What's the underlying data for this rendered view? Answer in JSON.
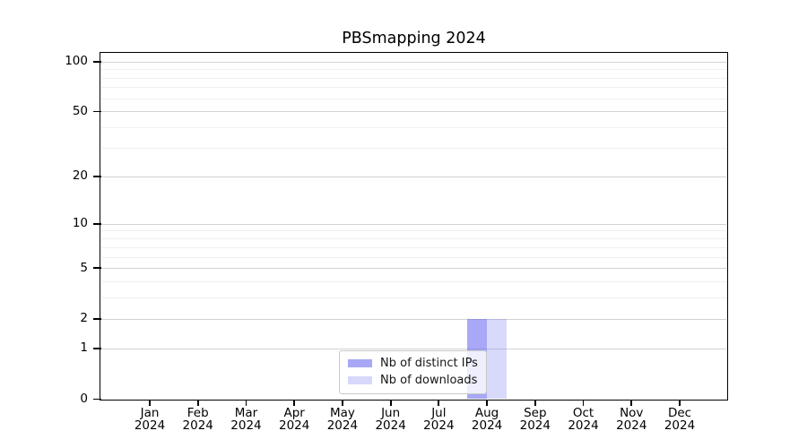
{
  "chart_data": {
    "type": "bar",
    "title": "PBSmapping 2024",
    "categories": [
      "Jan",
      "Feb",
      "Mar",
      "Apr",
      "May",
      "Jun",
      "Jul",
      "Aug",
      "Sep",
      "Oct",
      "Nov",
      "Dec"
    ],
    "year": "2024",
    "series": [
      {
        "name": "Nb of distinct IPs",
        "color": "rgba(102,102,240,0.57)",
        "legend_swatch_hex": "#a8a8f6",
        "values": [
          0,
          0,
          0,
          0,
          0,
          0,
          0,
          2,
          0,
          0,
          0,
          0
        ]
      },
      {
        "name": "Nb of downloads",
        "color": "rgba(102,102,240,0.25)",
        "legend_swatch_hex": "#d8d8fa",
        "values": [
          0,
          0,
          0,
          0,
          0,
          0,
          0,
          2,
          0,
          0,
          0,
          0
        ]
      }
    ],
    "yscale": "log1p",
    "ylim": [
      0,
      112
    ],
    "y_major_ticks": [
      0,
      1,
      2,
      5,
      10,
      20,
      50,
      100
    ],
    "y_minor_gridlines": [
      3,
      4,
      6,
      7,
      8,
      9,
      30,
      40,
      60,
      70,
      80,
      90
    ],
    "grid": "horizontal",
    "legend_position": "lower center inside plot",
    "colors": {
      "major_grid": "#d2d2d2",
      "minor_grid": "#f0f0f0",
      "frame": "#000000",
      "text": "#000000",
      "background": "#ffffff"
    }
  }
}
